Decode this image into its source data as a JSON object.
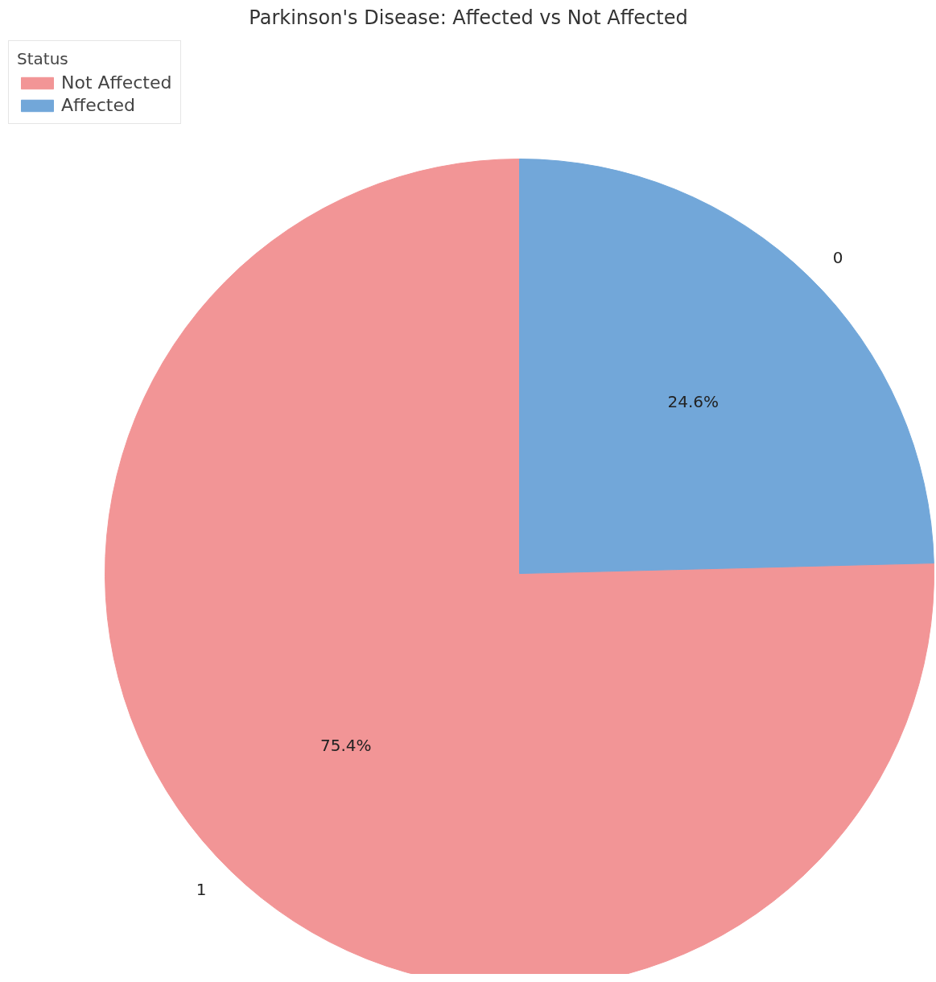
{
  "chart_data": {
    "type": "pie",
    "title": "Parkinson's Disease: Affected vs Not Affected",
    "legend_title": "Status",
    "categories": [
      "Not Affected",
      "Affected"
    ],
    "values": [
      75.4,
      24.6
    ],
    "colors": [
      "#f29596",
      "#72a7d9"
    ],
    "value_labels": [
      "75.4%",
      "24.6%"
    ],
    "annotations": [
      {
        "text": "1",
        "x": "Not Affected"
      },
      {
        "text": "0",
        "x": "Affected"
      }
    ],
    "legend": "top left"
  }
}
